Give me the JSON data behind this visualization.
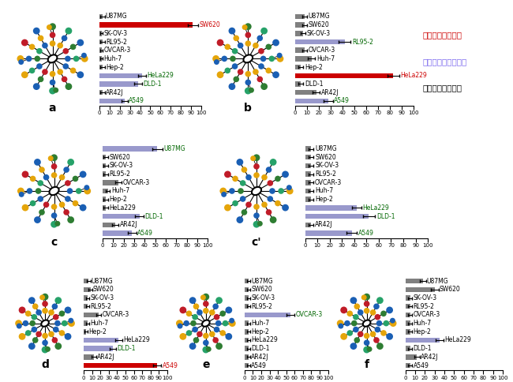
{
  "panels": {
    "a": {
      "label": "a",
      "cells": [
        "U87MG",
        "SW620",
        "SK-OV-3",
        "RL95-2",
        "OVCAR-3",
        "Huh-7",
        "Hep-2",
        "HeLa229",
        "DLD-1",
        "AR42J",
        "A549"
      ],
      "values": [
        3,
        92,
        2,
        3,
        2,
        2,
        3,
        42,
        38,
        3,
        25
      ],
      "errors": [
        2,
        5,
        1,
        2,
        1,
        1,
        2,
        4,
        4,
        2,
        3
      ],
      "colors": [
        "#808080",
        "#cc0000",
        "#808080",
        "#808080",
        "#808080",
        "#808080",
        "#808080",
        "#9999cc",
        "#9999cc",
        "#808080",
        "#9999cc"
      ],
      "label_colors": [
        "black",
        "#cc0000",
        "black",
        "black",
        "black",
        "black",
        "black",
        "#006600",
        "#006600",
        "black",
        "#006600"
      ],
      "highlighted": [
        "SW620",
        "HeLa229",
        "DLD-1",
        "A549"
      ]
    },
    "b": {
      "label": "b",
      "cells": [
        "U87MG",
        "SW620",
        "SK-OV-3",
        "RL95-2",
        "OVCAR-3",
        "Huh-7",
        "Hep-2",
        "HeLa229",
        "DLD-1",
        "AR42J",
        "A549"
      ],
      "values": [
        8,
        8,
        7,
        42,
        8,
        14,
        5,
        83,
        5,
        18,
        28
      ],
      "errors": [
        2,
        2,
        2,
        5,
        2,
        3,
        2,
        5,
        2,
        3,
        4
      ],
      "colors": [
        "#808080",
        "#808080",
        "#808080",
        "#9999cc",
        "#808080",
        "#808080",
        "#808080",
        "#cc0000",
        "#808080",
        "#808080",
        "#9999cc"
      ],
      "label_colors": [
        "black",
        "black",
        "black",
        "#006600",
        "black",
        "black",
        "black",
        "#cc0000",
        "black",
        "black",
        "#006600"
      ],
      "highlighted": [
        "RL95-2",
        "HeLa229",
        "A549"
      ]
    },
    "c": {
      "label": "c",
      "cells": [
        "U87MG",
        "SW620",
        "SK-OV-3",
        "RL95-2",
        "OVCAR-3",
        "Huh-7",
        "Hep-2",
        "HeLa229",
        "DLD-1",
        "AR42J",
        "A549"
      ],
      "values": [
        52,
        3,
        3,
        3,
        15,
        5,
        3,
        3,
        35,
        12,
        28
      ],
      "errors": [
        5,
        2,
        2,
        2,
        3,
        2,
        2,
        2,
        4,
        3,
        4
      ],
      "colors": [
        "#9999cc",
        "#808080",
        "#808080",
        "#808080",
        "#808080",
        "#808080",
        "#808080",
        "#808080",
        "#9999cc",
        "#808080",
        "#9999cc"
      ],
      "label_colors": [
        "#006600",
        "black",
        "black",
        "black",
        "black",
        "black",
        "black",
        "black",
        "#006600",
        "black",
        "#006600"
      ],
      "highlighted": [
        "U87MG",
        "DLD-1",
        "A549"
      ]
    },
    "cprime": {
      "label": "c'",
      "cells": [
        "U87MG",
        "SW620",
        "SK-OV-3",
        "RL95-2",
        "OVCAR-3",
        "Huh-7",
        "Hep-2",
        "HeLa229",
        "DLD-1",
        "AR42J",
        "A549"
      ],
      "values": [
        5,
        5,
        5,
        5,
        5,
        5,
        5,
        42,
        52,
        5,
        38
      ],
      "errors": [
        2,
        2,
        2,
        2,
        2,
        2,
        2,
        4,
        5,
        2,
        4
      ],
      "colors": [
        "#808080",
        "#808080",
        "#808080",
        "#808080",
        "#808080",
        "#808080",
        "#808080",
        "#9999cc",
        "#9999cc",
        "#808080",
        "#9999cc"
      ],
      "label_colors": [
        "black",
        "black",
        "black",
        "black",
        "black",
        "black",
        "black",
        "#006600",
        "#006600",
        "black",
        "#006600"
      ],
      "highlighted": [
        "HeLa229",
        "DLD-1",
        "A549"
      ]
    },
    "d": {
      "label": "d",
      "cells": [
        "U87MG",
        "SW620",
        "SK-OV-3",
        "RL95-2",
        "OVCAR-3",
        "Huh-7",
        "Hep-2",
        "HeLa229",
        "DLD-1",
        "AR42J",
        "A549"
      ],
      "values": [
        6,
        8,
        5,
        5,
        18,
        5,
        3,
        42,
        35,
        12,
        88
      ],
      "errors": [
        2,
        2,
        2,
        2,
        3,
        2,
        2,
        4,
        4,
        3,
        5
      ],
      "colors": [
        "#808080",
        "#808080",
        "#808080",
        "#808080",
        "#808080",
        "#808080",
        "#808080",
        "#9999cc",
        "#9999cc",
        "#808080",
        "#cc0000"
      ],
      "label_colors": [
        "black",
        "black",
        "black",
        "black",
        "black",
        "black",
        "black",
        "black",
        "#006600",
        "black",
        "#cc0000"
      ],
      "highlighted": [
        "HeLa229",
        "DLD-1",
        "A549"
      ]
    },
    "e": {
      "label": "e",
      "cells": [
        "U87MG",
        "SW620",
        "SK-OV-3",
        "RL95-2",
        "OVCAR-3",
        "Huh-7",
        "Hep-2",
        "HeLa229",
        "DLD-1",
        "AR42J",
        "A549"
      ],
      "values": [
        5,
        5,
        5,
        5,
        55,
        5,
        5,
        5,
        5,
        5,
        5
      ],
      "errors": [
        2,
        2,
        2,
        2,
        5,
        2,
        2,
        2,
        2,
        2,
        2
      ],
      "colors": [
        "#808080",
        "#808080",
        "#808080",
        "#808080",
        "#9999cc",
        "#808080",
        "#808080",
        "#808080",
        "#808080",
        "#808080",
        "#808080"
      ],
      "label_colors": [
        "black",
        "black",
        "black",
        "black",
        "#006600",
        "black",
        "black",
        "black",
        "black",
        "black",
        "black"
      ],
      "highlighted": [
        "OVCAR-3"
      ]
    },
    "f": {
      "label": "f",
      "cells": [
        "U87MG",
        "SW620",
        "SK-OV-3",
        "RL95-2",
        "OVCAR-3",
        "Huh-7",
        "Hep-2",
        "HeLa229",
        "DLD-1",
        "AR42J",
        "A549"
      ],
      "values": [
        18,
        30,
        5,
        5,
        5,
        5,
        5,
        35,
        5,
        12,
        5
      ],
      "errors": [
        3,
        4,
        2,
        2,
        2,
        2,
        2,
        4,
        2,
        3,
        2
      ],
      "colors": [
        "#808080",
        "#808080",
        "#808080",
        "#808080",
        "#808080",
        "#808080",
        "#808080",
        "#9999cc",
        "#808080",
        "#808080",
        "#808080"
      ],
      "label_colors": [
        "black",
        "black",
        "black",
        "black",
        "black",
        "black",
        "black",
        "black",
        "black",
        "black",
        "black"
      ],
      "highlighted": [
        "SW620",
        "HeLa229"
      ]
    }
  },
  "legend": {
    "red_text": "赤：強い相互作用",
    "purple_text": "紫：中間の相互作用",
    "black_text": "黒：弱い相互作用"
  },
  "xticks": [
    0,
    10,
    20,
    30,
    40,
    50,
    60,
    70,
    80,
    90,
    100
  ],
  "xlim": [
    0,
    100
  ]
}
